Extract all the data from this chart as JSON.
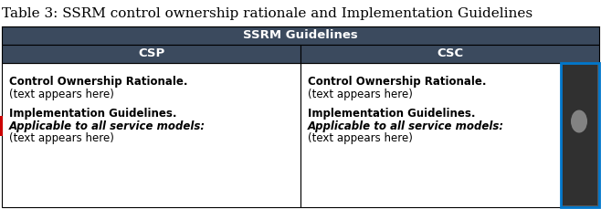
{
  "title": "Table 3: SSRM control ownership rationale and Implementation Guidelines",
  "title_fontsize": 11,
  "title_color": "#000000",
  "header1_text": "SSRM Guidelines",
  "header1_bg": "#3b4a5e",
  "header1_fg": "#ffffff",
  "header1_fontsize": 9.5,
  "header2_cols": [
    "CSP",
    "CSC"
  ],
  "header2_bg": "#3b4a5e",
  "header2_fg": "#ffffff",
  "header2_fontsize": 9.5,
  "cell_bg": "#ffffff",
  "left_accent_color": "#cc0000",
  "right_accent_color": "#0077cc",
  "csp_lines": [
    {
      "text": "Control Ownership Rationale.",
      "bold": true,
      "italic": false
    },
    {
      "text": "(text appears here)",
      "bold": false,
      "italic": false
    },
    {
      "text": "",
      "bold": false,
      "italic": false
    },
    {
      "text": "Implementation Guidelines.",
      "bold": true,
      "italic": false
    },
    {
      "text": "Applicable to all service models:",
      "bold": true,
      "italic": true
    },
    {
      "text": "(text appears here)",
      "bold": false,
      "italic": false
    }
  ],
  "csc_lines": [
    {
      "text": "Control Ownership Rationale.",
      "bold": true,
      "italic": false
    },
    {
      "text": "(text appears here)",
      "bold": false,
      "italic": false
    },
    {
      "text": "",
      "bold": false,
      "italic": false
    },
    {
      "text": "Implementation Guidelines.",
      "bold": true,
      "italic": false
    },
    {
      "text": "Applicable to all service models:",
      "bold": true,
      "italic": true
    },
    {
      "text": "(text appears here)",
      "bold": false,
      "italic": false
    }
  ],
  "cell_text_fontsize": 8.5,
  "fig_width": 6.58,
  "fig_height": 2.29,
  "dpi": 100
}
